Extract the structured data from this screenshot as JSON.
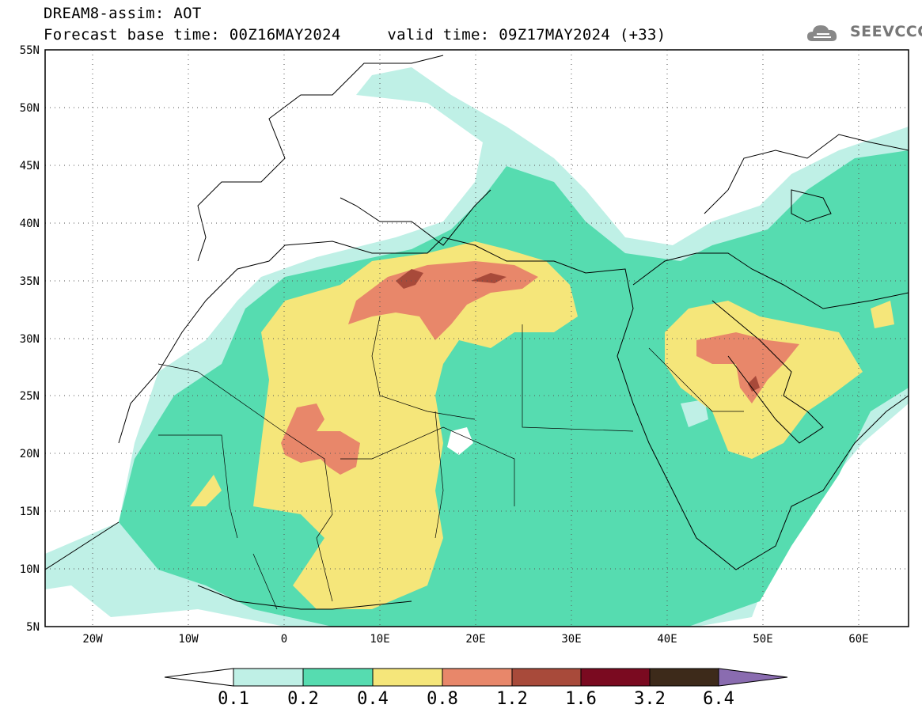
{
  "header": {
    "title": "DREAM8-assim: AOT",
    "base_time_label": "Forecast base time: 00Z16MAY2024",
    "valid_time_label": "valid time: 09Z17MAY2024 (+33)"
  },
  "logo": {
    "text": "SEEVCCC"
  },
  "map": {
    "lon_range": [
      -25,
      65
    ],
    "lat_range": [
      5,
      55
    ],
    "lat_ticks": [
      "55N",
      "50N",
      "45N",
      "40N",
      "35N",
      "30N",
      "25N",
      "20N",
      "15N",
      "10N",
      "5N"
    ],
    "lon_ticks": [
      "20W",
      "10W",
      "0",
      "10E",
      "20E",
      "30E",
      "40E",
      "50E",
      "60E"
    ]
  },
  "colorbar": {
    "levels": [
      "0.1",
      "0.2",
      "0.4",
      "0.8",
      "1.2",
      "1.6",
      "3.2",
      "6.4"
    ],
    "colors": [
      "#bff0e6",
      "#56dcb0",
      "#f5e67a",
      "#e8876a",
      "#a84a3a",
      "#7a0a20",
      "#3d2a1a",
      "#8a6cb0"
    ]
  }
}
